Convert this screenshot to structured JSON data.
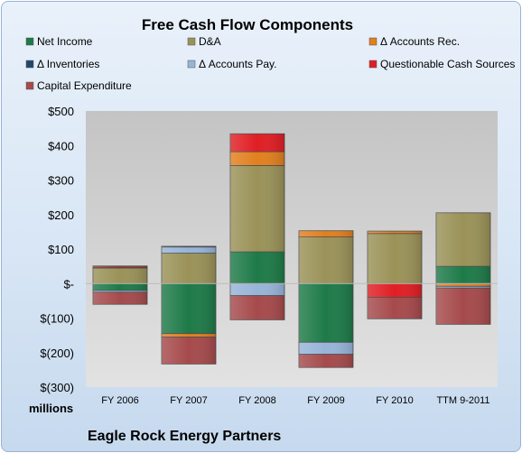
{
  "chart_data": {
    "type": "bar",
    "stacked": true,
    "title": "Free Cash Flow Components",
    "ylabel": "millions",
    "categories": [
      "FY 2006",
      "FY 2007",
      "FY 2008",
      "FY 2009",
      "FY 2010",
      "TTM 9-2011"
    ],
    "ylim": [
      -300,
      500
    ],
    "yticks": [
      -300,
      -200,
      -100,
      0,
      100,
      200,
      300,
      400,
      500
    ],
    "ytick_labels": [
      "$(300)",
      "$(200)",
      "$(100)",
      "$-",
      "$100",
      "$200",
      "$300",
      "$400",
      "$500"
    ],
    "legend_position": "top",
    "grid": false,
    "series": [
      {
        "name": "Net Income",
        "color": "#1e7a48",
        "values": [
          -20,
          -145,
          92,
          -170,
          0,
          50
        ]
      },
      {
        "name": "D&A",
        "color": "#9a9258",
        "values": [
          45,
          88,
          250,
          135,
          145,
          155
        ]
      },
      {
        "name": "Δ Accounts Rec.",
        "color": "#e27f1e",
        "values": [
          2,
          -10,
          40,
          18,
          7,
          -8
        ]
      },
      {
        "name": "Δ Inventories",
        "color": "#24466e",
        "values": [
          0,
          0,
          0,
          0,
          0,
          0
        ]
      },
      {
        "name": "Δ Accounts Pay.",
        "color": "#97b4d8",
        "values": [
          -5,
          18,
          -35,
          -35,
          0,
          -5
        ]
      },
      {
        "name": "Questionable Cash Sources",
        "color": "#e01e24",
        "values": [
          4,
          2,
          52,
          0,
          -40,
          0
        ]
      },
      {
        "name": "Capital Expenditure",
        "color": "#a64a4c",
        "values": [
          -35,
          -78,
          -70,
          -38,
          -62,
          -105
        ]
      }
    ]
  },
  "footer": {
    "company": "Eagle Rock Energy Partners"
  }
}
